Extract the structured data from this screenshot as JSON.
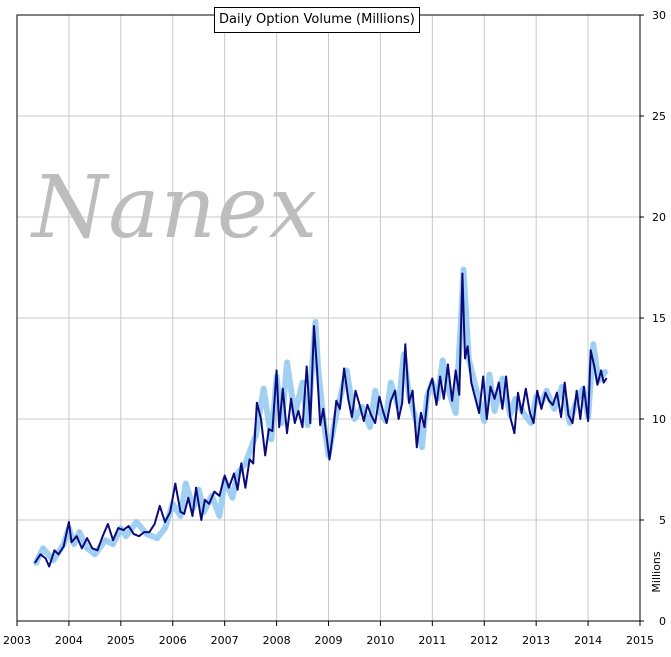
{
  "watermark": "Nanex",
  "chart_data": {
    "type": "line",
    "title": "Daily Option Volume (Millions)",
    "ylabel": "Millions",
    "xlabel": "",
    "x_ticks": [
      "2003",
      "2004",
      "2005",
      "2006",
      "2007",
      "2008",
      "2009",
      "2010",
      "2011",
      "2012",
      "2013",
      "2014",
      "2015"
    ],
    "y_ticks": [
      "0",
      "5",
      "10",
      "15",
      "20",
      "25",
      "30"
    ],
    "xlim": [
      2003,
      2015
    ],
    "ylim": [
      0,
      30
    ],
    "grid": true,
    "y_axis_side": "right",
    "colors": {
      "daily": "#90c8f0",
      "average": "#0b0b7c",
      "grid": "#c8c8c8"
    },
    "series": [
      {
        "style": "daily",
        "x": [
          2003.35,
          2003.5,
          2003.7,
          2003.9,
          2004.0,
          2004.1,
          2004.2,
          2004.35,
          2004.5,
          2004.7,
          2004.85,
          2005.0,
          2005.1,
          2005.3,
          2005.5,
          2005.7,
          2005.85,
          2006.0,
          2006.15,
          2006.25,
          2006.4,
          2006.5,
          2006.6,
          2006.75,
          2006.9,
          2007.0,
          2007.15,
          2007.25,
          2007.4,
          2007.6,
          2007.75,
          2007.9,
          2008.0,
          2008.1,
          2008.2,
          2008.35,
          2008.5,
          2008.6,
          2008.75,
          2008.8,
          2008.9,
          2009.0,
          2009.1,
          2009.2,
          2009.35,
          2009.5,
          2009.65,
          2009.8,
          2009.9,
          2010.0,
          2010.1,
          2010.2,
          2010.35,
          2010.45,
          2010.55,
          2010.7,
          2010.8,
          2010.9,
          2011.0,
          2011.1,
          2011.2,
          2011.3,
          2011.45,
          2011.55,
          2011.6,
          2011.7,
          2011.85,
          2012.0,
          2012.1,
          2012.2,
          2012.35,
          2012.5,
          2012.6,
          2012.75,
          2012.9,
          2013.0,
          2013.1,
          2013.2,
          2013.35,
          2013.5,
          2013.65,
          2013.75,
          2013.9,
          2014.0,
          2014.1,
          2014.2,
          2014.35
        ],
        "y": [
          2.8,
          3.6,
          3.0,
          3.8,
          4.6,
          3.8,
          4.4,
          3.6,
          3.3,
          4.0,
          3.8,
          4.6,
          4.2,
          4.9,
          4.3,
          4.1,
          4.6,
          5.8,
          5.2,
          6.8,
          5.6,
          6.5,
          5.4,
          6.2,
          5.2,
          7.0,
          6.1,
          7.3,
          7.8,
          9.2,
          11.5,
          9.0,
          12.1,
          9.8,
          12.8,
          10.2,
          11.8,
          9.7,
          14.8,
          12.5,
          10.0,
          8.2,
          9.6,
          10.8,
          12.4,
          10.0,
          10.6,
          9.6,
          11.4,
          10.3,
          9.9,
          11.8,
          10.6,
          13.2,
          11.2,
          9.8,
          8.6,
          11.1,
          11.8,
          11.0,
          12.9,
          11.5,
          10.3,
          14.8,
          17.4,
          13.0,
          11.4,
          9.9,
          12.2,
          10.4,
          12.0,
          10.2,
          11.0,
          10.3,
          9.8,
          11.1,
          10.8,
          11.4,
          10.5,
          11.6,
          9.8,
          10.7,
          11.5,
          10.1,
          13.7,
          11.9,
          12.4
        ]
      },
      {
        "style": "average",
        "x": [
          2003.35,
          2003.45,
          2003.55,
          2003.62,
          2003.72,
          2003.8,
          2003.9,
          2004.0,
          2004.05,
          2004.15,
          2004.25,
          2004.35,
          2004.45,
          2004.55,
          2004.65,
          2004.75,
          2004.85,
          2004.95,
          2005.05,
          2005.15,
          2005.25,
          2005.35,
          2005.45,
          2005.55,
          2005.65,
          2005.75,
          2005.85,
          2005.95,
          2006.05,
          2006.15,
          2006.22,
          2006.3,
          2006.38,
          2006.45,
          2006.55,
          2006.62,
          2006.7,
          2006.8,
          2006.9,
          2007.0,
          2007.08,
          2007.18,
          2007.25,
          2007.32,
          2007.4,
          2007.48,
          2007.55,
          2007.62,
          2007.7,
          2007.78,
          2007.85,
          2007.92,
          2008.0,
          2008.05,
          2008.12,
          2008.2,
          2008.28,
          2008.35,
          2008.42,
          2008.5,
          2008.58,
          2008.65,
          2008.72,
          2008.78,
          2008.84,
          2008.9,
          2008.96,
          2009.02,
          2009.08,
          2009.15,
          2009.22,
          2009.3,
          2009.38,
          2009.45,
          2009.52,
          2009.6,
          2009.68,
          2009.75,
          2009.82,
          2009.9,
          2009.98,
          2010.05,
          2010.12,
          2010.2,
          2010.28,
          2010.35,
          2010.42,
          2010.48,
          2010.55,
          2010.62,
          2010.7,
          2010.78,
          2010.85,
          2010.92,
          2011.0,
          2011.08,
          2011.15,
          2011.22,
          2011.3,
          2011.38,
          2011.45,
          2011.52,
          2011.58,
          2011.63,
          2011.68,
          2011.75,
          2011.82,
          2011.9,
          2011.98,
          2012.05,
          2012.12,
          2012.2,
          2012.28,
          2012.35,
          2012.42,
          2012.5,
          2012.58,
          2012.65,
          2012.72,
          2012.8,
          2012.88,
          2012.95,
          2013.02,
          2013.1,
          2013.18,
          2013.25,
          2013.32,
          2013.4,
          2013.48,
          2013.55,
          2013.62,
          2013.7,
          2013.78,
          2013.85,
          2013.92,
          2014.0,
          2014.05,
          2014.12,
          2014.18,
          2014.25,
          2014.3,
          2014.35
        ],
        "y": [
          2.9,
          3.3,
          3.1,
          2.7,
          3.5,
          3.3,
          3.7,
          4.9,
          3.9,
          4.2,
          3.6,
          4.1,
          3.6,
          3.5,
          4.2,
          4.8,
          4.0,
          4.6,
          4.5,
          4.7,
          4.3,
          4.2,
          4.4,
          4.4,
          4.8,
          5.7,
          4.9,
          5.4,
          6.8,
          5.4,
          5.3,
          6.1,
          5.2,
          6.6,
          5.0,
          6.0,
          5.8,
          6.4,
          6.2,
          7.2,
          6.6,
          7.3,
          6.5,
          7.8,
          6.6,
          8.0,
          7.8,
          10.8,
          10.0,
          8.2,
          9.5,
          9.4,
          12.4,
          9.6,
          11.5,
          9.3,
          11.0,
          9.8,
          10.4,
          9.6,
          12.6,
          9.8,
          14.6,
          12.4,
          9.7,
          10.5,
          9.2,
          8.0,
          9.2,
          10.9,
          10.5,
          12.5,
          11.0,
          10.1,
          11.4,
          10.7,
          9.9,
          10.7,
          10.2,
          9.8,
          11.1,
          10.4,
          9.8,
          10.9,
          11.4,
          10.0,
          10.8,
          13.7,
          10.8,
          11.4,
          8.6,
          10.3,
          9.6,
          11.4,
          12.0,
          10.7,
          12.1,
          11.0,
          12.7,
          10.9,
          12.4,
          11.2,
          17.2,
          13.0,
          13.6,
          11.8,
          11.1,
          10.3,
          12.1,
          10.0,
          11.6,
          11.0,
          11.8,
          10.5,
          12.1,
          10.1,
          9.3,
          11.3,
          10.3,
          11.5,
          10.3,
          9.8,
          11.4,
          10.5,
          11.3,
          10.9,
          10.7,
          11.3,
          10.1,
          11.8,
          10.2,
          9.8,
          11.4,
          10.0,
          11.6,
          9.9,
          13.4,
          12.6,
          11.7,
          12.4,
          11.8,
          12.0
        ]
      }
    ]
  }
}
